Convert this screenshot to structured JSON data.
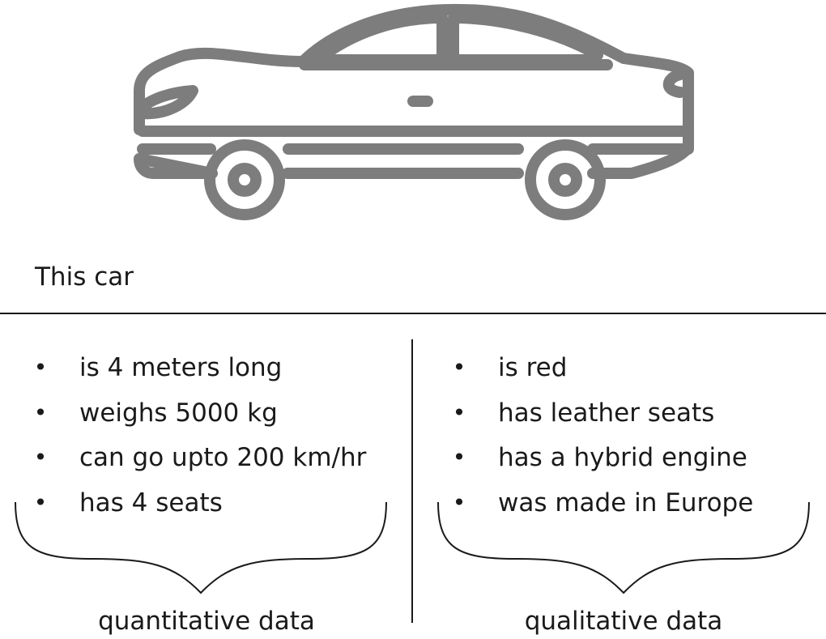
{
  "subject": "This car",
  "columns": [
    {
      "items": [
        "is 4 meters long",
        "weighs 5000 kg",
        "can go upto 200 km/hr",
        "has 4 seats"
      ],
      "caption": "quantitative data"
    },
    {
      "items": [
        "is red",
        "has leather seats",
        "has a hybrid engine",
        "was made in Europe"
      ],
      "caption": "qualitative data"
    }
  ],
  "bullet": "•",
  "icons": {
    "car": "car-icon"
  },
  "colors": {
    "icon": "#7d7d7d",
    "text": "#1a1a1a",
    "background": "#ffffff"
  }
}
